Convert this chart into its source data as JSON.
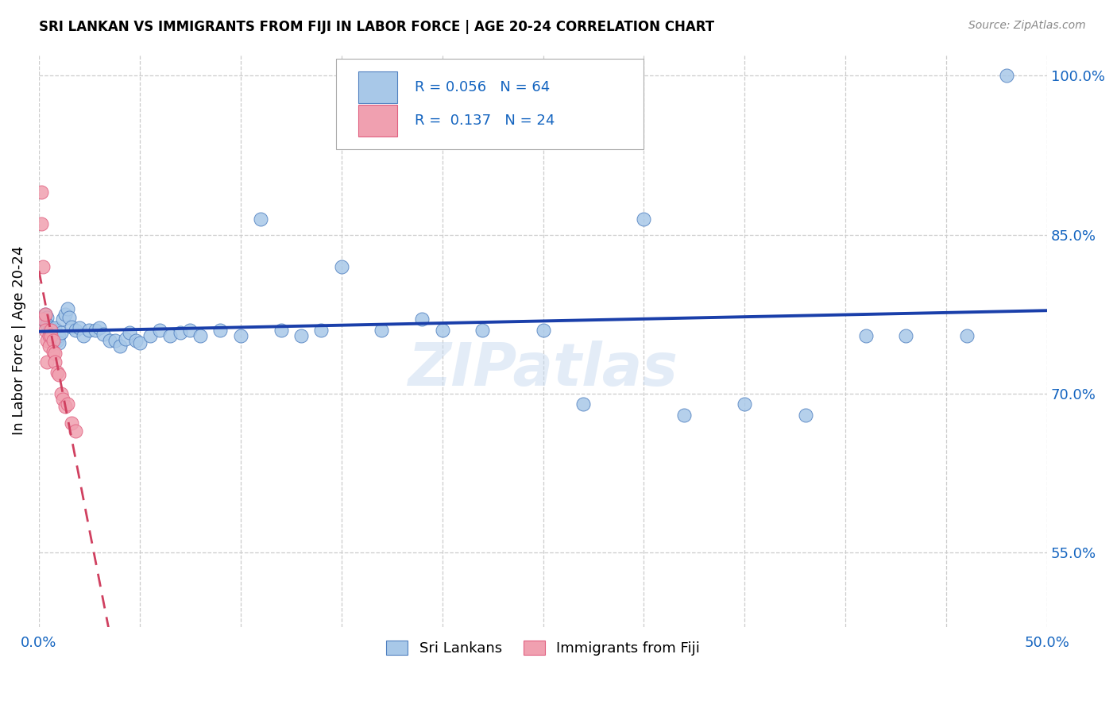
{
  "title": "SRI LANKAN VS IMMIGRANTS FROM FIJI IN LABOR FORCE | AGE 20-24 CORRELATION CHART",
  "source": "Source: ZipAtlas.com",
  "ylabel_text": "In Labor Force | Age 20-24",
  "xlim": [
    0.0,
    0.5
  ],
  "ylim": [
    0.48,
    1.02
  ],
  "xticks": [
    0.0,
    0.05,
    0.1,
    0.15,
    0.2,
    0.25,
    0.3,
    0.35,
    0.4,
    0.45,
    0.5
  ],
  "xticklabels": [
    "0.0%",
    "",
    "",
    "",
    "",
    "",
    "",
    "",
    "",
    "",
    "50.0%"
  ],
  "ytick_positions": [
    0.55,
    0.7,
    0.85,
    1.0
  ],
  "ytick_labels": [
    "55.0%",
    "70.0%",
    "85.0%",
    "100.0%"
  ],
  "blue_r": "0.056",
  "blue_n": "64",
  "pink_r": "0.137",
  "pink_n": "24",
  "blue_color": "#a8c8e8",
  "pink_color": "#f0a0b0",
  "blue_edge": "#5080c0",
  "pink_edge": "#e06080",
  "trend_blue": "#1a3faa",
  "trend_pink": "#d04060",
  "label_color": "#1565C0",
  "legend_sri": "Sri Lankans",
  "legend_fiji": "Immigrants from Fiji",
  "watermark": "ZIPatlas",
  "blue_x": [
    0.002,
    0.003,
    0.003,
    0.004,
    0.004,
    0.005,
    0.005,
    0.006,
    0.006,
    0.007,
    0.007,
    0.008,
    0.008,
    0.009,
    0.009,
    0.01,
    0.01,
    0.011,
    0.012,
    0.013,
    0.014,
    0.015,
    0.016,
    0.018,
    0.02,
    0.022,
    0.025,
    0.028,
    0.03,
    0.032,
    0.035,
    0.038,
    0.04,
    0.043,
    0.045,
    0.048,
    0.05,
    0.055,
    0.06,
    0.065,
    0.07,
    0.075,
    0.08,
    0.09,
    0.1,
    0.11,
    0.12,
    0.13,
    0.14,
    0.15,
    0.17,
    0.19,
    0.2,
    0.22,
    0.25,
    0.27,
    0.3,
    0.32,
    0.35,
    0.38,
    0.41,
    0.43,
    0.46,
    0.48
  ],
  "blue_y": [
    0.77,
    0.775,
    0.768,
    0.772,
    0.765,
    0.76,
    0.755,
    0.758,
    0.762,
    0.76,
    0.756,
    0.762,
    0.75,
    0.75,
    0.755,
    0.755,
    0.748,
    0.758,
    0.77,
    0.775,
    0.78,
    0.772,
    0.763,
    0.76,
    0.762,
    0.755,
    0.76,
    0.76,
    0.762,
    0.756,
    0.75,
    0.75,
    0.745,
    0.752,
    0.758,
    0.75,
    0.748,
    0.755,
    0.76,
    0.755,
    0.758,
    0.76,
    0.755,
    0.76,
    0.755,
    0.865,
    0.76,
    0.755,
    0.76,
    0.82,
    0.76,
    0.77,
    0.76,
    0.76,
    0.76,
    0.69,
    0.865,
    0.68,
    0.69,
    0.68,
    0.755,
    0.755,
    0.755,
    1.0
  ],
  "pink_x": [
    0.001,
    0.001,
    0.002,
    0.002,
    0.003,
    0.003,
    0.004,
    0.004,
    0.005,
    0.005,
    0.006,
    0.006,
    0.007,
    0.007,
    0.008,
    0.008,
    0.009,
    0.01,
    0.011,
    0.012,
    0.013,
    0.014,
    0.016,
    0.018
  ],
  "pink_y": [
    0.89,
    0.86,
    0.82,
    0.77,
    0.775,
    0.76,
    0.75,
    0.73,
    0.755,
    0.745,
    0.76,
    0.755,
    0.75,
    0.74,
    0.738,
    0.73,
    0.72,
    0.718,
    0.7,
    0.695,
    0.688,
    0.69,
    0.672,
    0.665
  ]
}
